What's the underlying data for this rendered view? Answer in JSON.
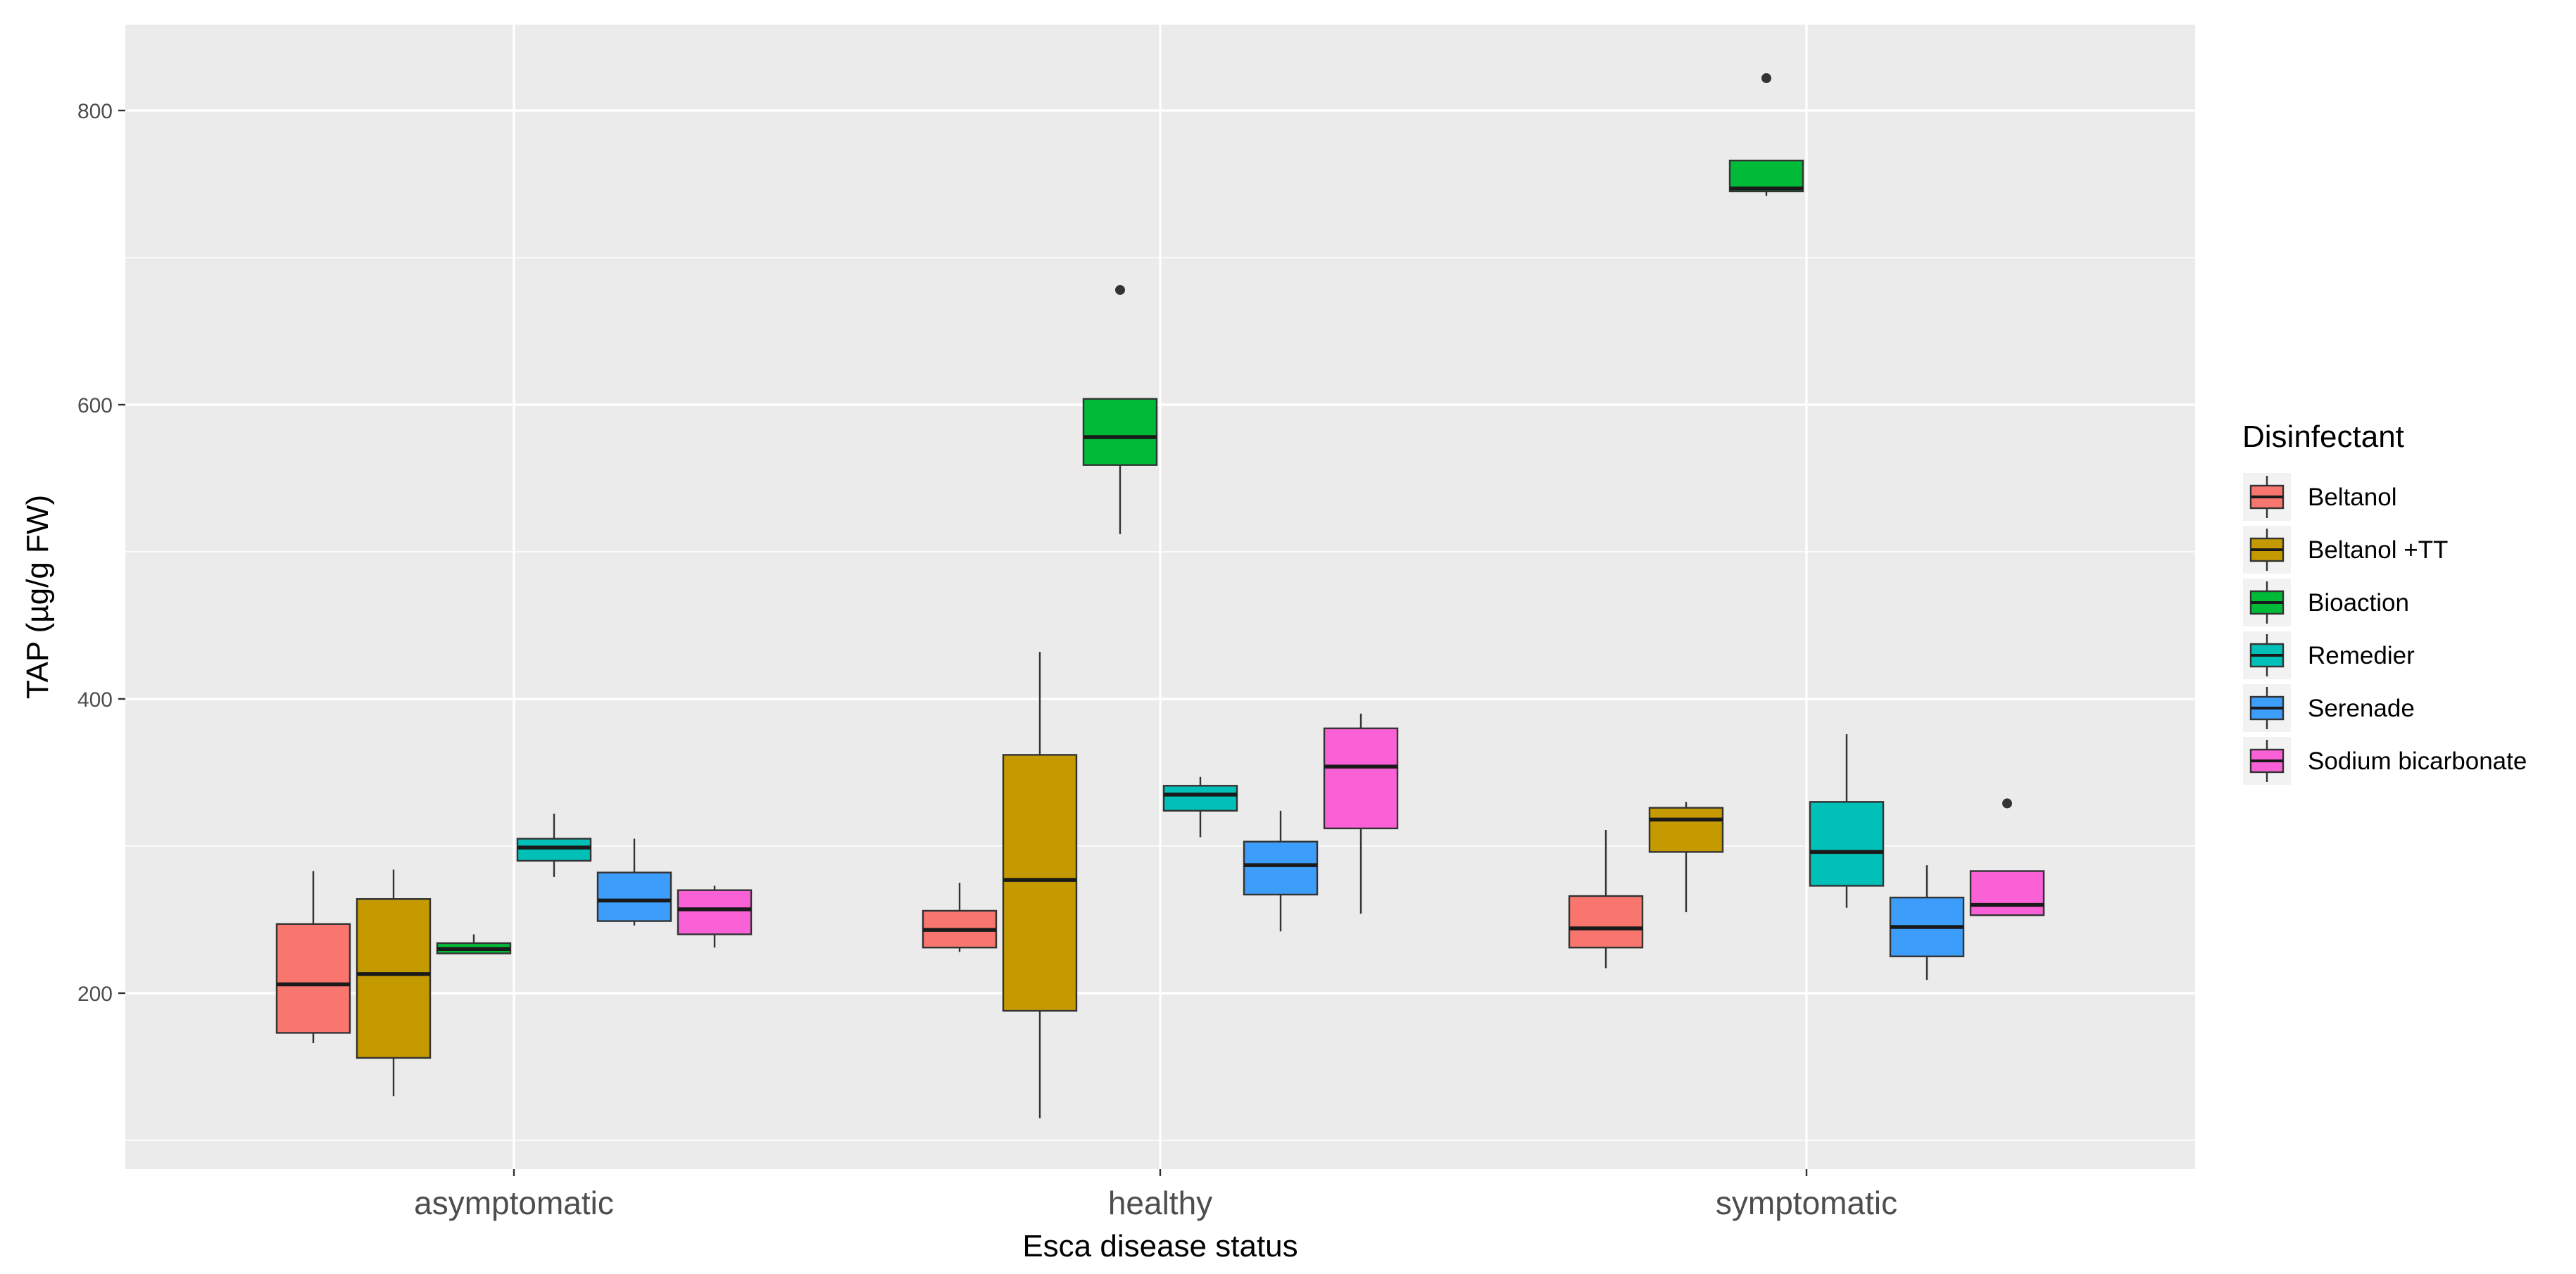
{
  "chart_data": {
    "type": "boxplot",
    "title": "",
    "xlabel": "Esca disease status",
    "ylabel": "TAP (µg/g FW)",
    "categories": [
      "asymptomatic",
      "healthy",
      "symptomatic"
    ],
    "ylim": [
      80,
      855
    ],
    "yticks": [
      200,
      400,
      600,
      800
    ],
    "grid": true,
    "legend": {
      "title": "Disinfectant",
      "position": "right"
    },
    "colors": {
      "panel_background": "#ebebeb",
      "grid_line": "#ffffff",
      "box_outline": "#333333",
      "median_line": "#1a1a1a"
    },
    "series": [
      {
        "name": "Beltanol",
        "color": "#F8766D",
        "boxes": [
          {
            "category": "asymptomatic",
            "whisker_low": 166,
            "q1": 173,
            "median": 206,
            "q3": 247,
            "whisker_high": 283,
            "outliers": []
          },
          {
            "category": "healthy",
            "whisker_low": 228,
            "q1": 231,
            "median": 243,
            "q3": 256,
            "whisker_high": 275,
            "outliers": []
          },
          {
            "category": "symptomatic",
            "whisker_low": 217,
            "q1": 231,
            "median": 244,
            "q3": 266,
            "whisker_high": 311,
            "outliers": []
          }
        ]
      },
      {
        "name": "Beltanol +TT",
        "color": "#C49A00",
        "boxes": [
          {
            "category": "asymptomatic",
            "whisker_low": 130,
            "q1": 156,
            "median": 213,
            "q3": 264,
            "whisker_high": 284,
            "outliers": []
          },
          {
            "category": "healthy",
            "whisker_low": 115,
            "q1": 188,
            "median": 277,
            "q3": 362,
            "whisker_high": 432,
            "outliers": []
          },
          {
            "category": "symptomatic",
            "whisker_low": 255,
            "q1": 296,
            "median": 318,
            "q3": 326,
            "whisker_high": 330,
            "outliers": []
          }
        ]
      },
      {
        "name": "Bioaction",
        "color": "#00BA38",
        "boxes": [
          {
            "category": "asymptomatic",
            "whisker_low": 227,
            "q1": 227,
            "median": 230,
            "q3": 234,
            "whisker_high": 240,
            "outliers": []
          },
          {
            "category": "healthy",
            "whisker_low": 512,
            "q1": 559,
            "median": 578,
            "q3": 604,
            "whisker_high": 604,
            "outliers": [
              678
            ]
          },
          {
            "category": "symptomatic",
            "whisker_low": 742,
            "q1": 745,
            "median": 747,
            "q3": 766,
            "whisker_high": 766,
            "outliers": [
              822
            ]
          }
        ]
      },
      {
        "name": "Remedier",
        "color": "#00C0B8",
        "boxes": [
          {
            "category": "asymptomatic",
            "whisker_low": 279,
            "q1": 290,
            "median": 299,
            "q3": 305,
            "whisker_high": 322,
            "outliers": []
          },
          {
            "category": "healthy",
            "whisker_low": 306,
            "q1": 324,
            "median": 335,
            "q3": 341,
            "whisker_high": 347,
            "outliers": []
          },
          {
            "category": "symptomatic",
            "whisker_low": 258,
            "q1": 273,
            "median": 296,
            "q3": 330,
            "whisker_high": 376,
            "outliers": []
          }
        ]
      },
      {
        "name": "Serenade",
        "color": "#3D9DFA",
        "boxes": [
          {
            "category": "asymptomatic",
            "whisker_low": 246,
            "q1": 249,
            "median": 263,
            "q3": 282,
            "whisker_high": 305,
            "outliers": []
          },
          {
            "category": "healthy",
            "whisker_low": 242,
            "q1": 267,
            "median": 287,
            "q3": 303,
            "whisker_high": 324,
            "outliers": []
          },
          {
            "category": "symptomatic",
            "whisker_low": 209,
            "q1": 225,
            "median": 245,
            "q3": 265,
            "whisker_high": 287,
            "outliers": []
          }
        ]
      },
      {
        "name": "Sodium bicarbonate",
        "color": "#FB61D7",
        "boxes": [
          {
            "category": "asymptomatic",
            "whisker_low": 231,
            "q1": 240,
            "median": 257,
            "q3": 270,
            "whisker_high": 273,
            "outliers": []
          },
          {
            "category": "healthy",
            "whisker_low": 254,
            "q1": 312,
            "median": 354,
            "q3": 380,
            "whisker_high": 390,
            "outliers": []
          },
          {
            "category": "symptomatic",
            "whisker_low": 253,
            "q1": 253,
            "median": 260,
            "q3": 283,
            "whisker_high": 283,
            "outliers": [
              329
            ]
          }
        ]
      }
    ]
  }
}
